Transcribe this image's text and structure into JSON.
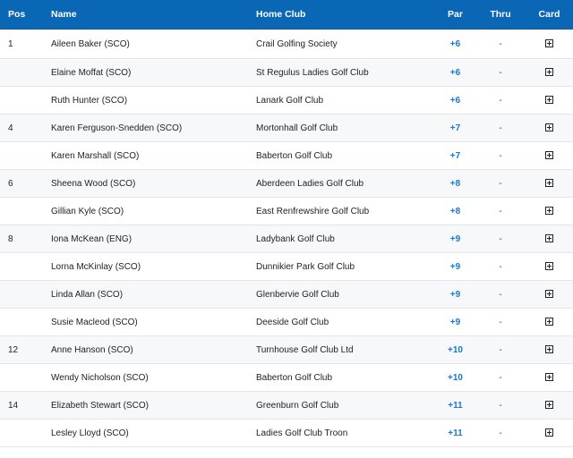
{
  "header": {
    "pos": "Pos",
    "name": "Name",
    "club": "Home Club",
    "par": "Par",
    "thru": "Thru",
    "card": "Card"
  },
  "rows": [
    {
      "pos": "1",
      "name": "Aileen Baker (SCO)",
      "club": "Crail Golfing Society",
      "par": "+6",
      "thru": "-"
    },
    {
      "pos": "",
      "name": "Elaine Moffat (SCO)",
      "club": "St Regulus Ladies Golf Club",
      "par": "+6",
      "thru": "-"
    },
    {
      "pos": "",
      "name": "Ruth Hunter (SCO)",
      "club": "Lanark Golf Club",
      "par": "+6",
      "thru": "-"
    },
    {
      "pos": "4",
      "name": "Karen Ferguson-Snedden (SCO)",
      "club": "Mortonhall Golf Club",
      "par": "+7",
      "thru": "-"
    },
    {
      "pos": "",
      "name": "Karen Marshall (SCO)",
      "club": "Baberton Golf Club",
      "par": "+7",
      "thru": "-"
    },
    {
      "pos": "6",
      "name": "Sheena Wood (SCO)",
      "club": "Aberdeen Ladies Golf Club",
      "par": "+8",
      "thru": "-"
    },
    {
      "pos": "",
      "name": "Gillian Kyle (SCO)",
      "club": "East Renfrewshire Golf Club",
      "par": "+8",
      "thru": "-"
    },
    {
      "pos": "8",
      "name": "Iona McKean (ENG)",
      "club": "Ladybank Golf Club",
      "par": "+9",
      "thru": "-"
    },
    {
      "pos": "",
      "name": "Lorna McKinlay (SCO)",
      "club": "Dunnikier Park Golf Club",
      "par": "+9",
      "thru": "-"
    },
    {
      "pos": "",
      "name": "Linda Allan (SCO)",
      "club": "Glenbervie Golf Club",
      "par": "+9",
      "thru": "-"
    },
    {
      "pos": "",
      "name": "Susie Macleod (SCO)",
      "club": "Deeside Golf Club",
      "par": "+9",
      "thru": "-"
    },
    {
      "pos": "12",
      "name": "Anne Hanson (SCO)",
      "club": "Turnhouse Golf Club Ltd",
      "par": "+10",
      "thru": "-"
    },
    {
      "pos": "",
      "name": "Wendy Nicholson (SCO)",
      "club": "Baberton Golf Club",
      "par": "+10",
      "thru": "-"
    },
    {
      "pos": "14",
      "name": "Elizabeth Stewart (SCO)",
      "club": "Greenburn Golf Club",
      "par": "+11",
      "thru": "-"
    },
    {
      "pos": "",
      "name": "Lesley Lloyd (SCO)",
      "club": "Ladies Golf Club Troon",
      "par": "+11",
      "thru": "-"
    }
  ],
  "icons": {
    "card": "expand-card-icon"
  },
  "colors": {
    "header_bg": "#0a67b6",
    "par_text": "#1778d2"
  }
}
